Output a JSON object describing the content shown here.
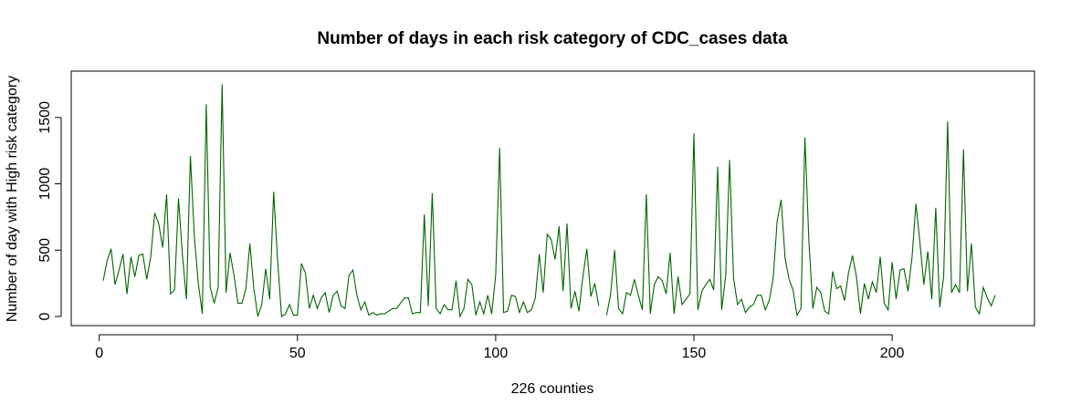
{
  "chart_data": {
    "type": "line",
    "title": "Number of days in each risk category of CDC_cases data",
    "xlabel": "226 counties",
    "ylabel": "Number of day with High risk category",
    "xlim": [
      1,
      226
    ],
    "ylim": [
      0,
      1760
    ],
    "x_ticks": [
      0,
      50,
      100,
      150,
      200
    ],
    "y_ticks": [
      0,
      500,
      1000,
      1500
    ],
    "x_tick_labels": [
      "0",
      "50",
      "100",
      "150",
      "200"
    ],
    "y_tick_labels": [
      "0",
      "500",
      "1000",
      "1500"
    ],
    "line_color": "#006400",
    "grid": false,
    "series": [
      {
        "values": [
          270,
          420,
          510,
          240,
          350,
          470,
          170,
          450,
          300,
          460,
          470,
          280,
          450,
          780,
          700,
          520,
          920,
          170,
          200,
          890,
          460,
          130,
          1210,
          600,
          250,
          20,
          1600,
          220,
          100,
          220,
          1750,
          180,
          480,
          310,
          100,
          100,
          210,
          550,
          210,
          0,
          90,
          360,
          130,
          940,
          420,
          0,
          20,
          90,
          10,
          10,
          400,
          330,
          60,
          160,
          60,
          140,
          180,
          30,
          160,
          190,
          80,
          60,
          310,
          350,
          160,
          50,
          110,
          10,
          30,
          10,
          20,
          20,
          40,
          60,
          60,
          100,
          140,
          140,
          20,
          30,
          30,
          770,
          80,
          930,
          60,
          20,
          90,
          50,
          50,
          270,
          0,
          60,
          280,
          240,
          10,
          110,
          20,
          160,
          20,
          310,
          1270,
          30,
          40,
          160,
          150,
          30,
          110,
          30,
          50,
          140,
          470,
          180,
          620,
          580,
          430,
          680,
          190,
          700,
          60,
          190,
          40,
          300,
          510,
          150,
          250,
          80,
          null,
          10,
          170,
          500,
          60,
          20,
          180,
          160,
          280,
          160,
          50,
          920,
          20,
          240,
          300,
          270,
          170,
          480,
          20,
          300,
          90,
          130,
          170,
          1380,
          50,
          190,
          240,
          280,
          200,
          1130,
          50,
          300,
          1180,
          290,
          90,
          130,
          30,
          70,
          90,
          160,
          160,
          50,
          120,
          290,
          720,
          880,
          440,
          280,
          200,
          10,
          60,
          1350,
          570,
          60,
          220,
          180,
          40,
          20,
          340,
          210,
          230,
          120,
          330,
          460,
          300,
          20,
          250,
          130,
          260,
          180,
          450,
          100,
          50,
          410,
          130,
          350,
          360,
          190,
          440,
          850,
          560,
          240,
          490,
          130,
          820,
          70,
          300,
          1470,
          180,
          240,
          180,
          1260,
          190,
          550,
          70,
          20,
          220,
          140,
          80,
          160
        ]
      }
    ]
  }
}
